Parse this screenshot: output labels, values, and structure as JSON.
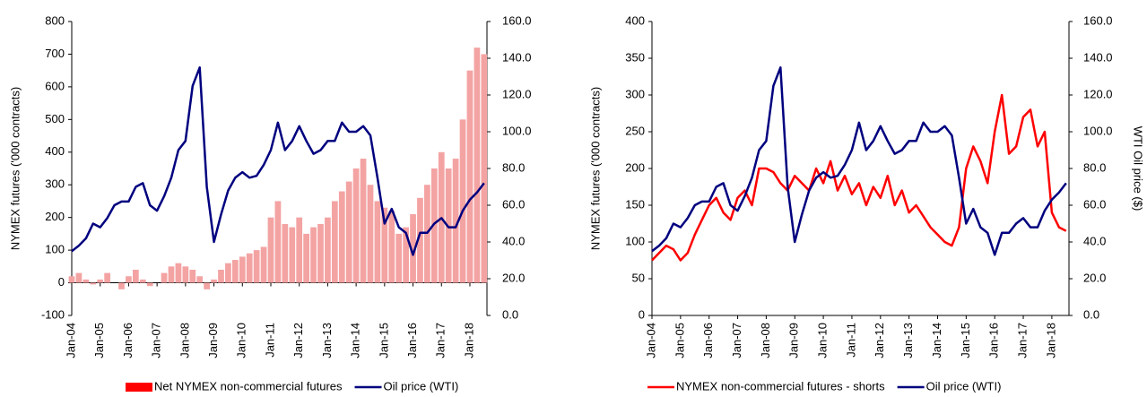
{
  "chart_data": [
    {
      "type": "bar",
      "y_label": "NYMEX futures ('000 contracts)",
      "x": [
        2004,
        2004.25,
        2004.5,
        2004.75,
        2005,
        2005.25,
        2005.5,
        2005.75,
        2006,
        2006.25,
        2006.5,
        2006.75,
        2007,
        2007.25,
        2007.5,
        2007.75,
        2008,
        2008.25,
        2008.5,
        2008.75,
        2009,
        2009.25,
        2009.5,
        2009.75,
        2010,
        2010.25,
        2010.5,
        2010.75,
        2011,
        2011.25,
        2011.5,
        2011.75,
        2012,
        2012.25,
        2012.5,
        2012.75,
        2013,
        2013.25,
        2013.5,
        2013.75,
        2014,
        2014.25,
        2014.5,
        2014.75,
        2015,
        2015.25,
        2015.5,
        2015.75,
        2016,
        2016.25,
        2016.5,
        2016.75,
        2017,
        2017.25,
        2017.5,
        2017.75,
        2018,
        2018.25,
        2018.5
      ],
      "xlim": [
        2004,
        2018.6
      ],
      "xticks": [
        {
          "value": 2004,
          "label": "Jan-04"
        },
        {
          "value": 2005,
          "label": "Jan-05"
        },
        {
          "value": 2006,
          "label": "Jan-06"
        },
        {
          "value": 2007,
          "label": "Jan-07"
        },
        {
          "value": 2008,
          "label": "Jan-08"
        },
        {
          "value": 2009,
          "label": "Jan-09"
        },
        {
          "value": 2010,
          "label": "Jan-10"
        },
        {
          "value": 2011,
          "label": "Jan-11"
        },
        {
          "value": 2012,
          "label": "Jan-12"
        },
        {
          "value": 2013,
          "label": "Jan-13"
        },
        {
          "value": 2014,
          "label": "Jan-14"
        },
        {
          "value": 2015,
          "label": "Jan-15"
        },
        {
          "value": 2016,
          "label": "Jan-16"
        },
        {
          "value": 2017,
          "label": "Jan-17"
        },
        {
          "value": 2018,
          "label": "Jan-18"
        }
      ],
      "ylim": [
        -100,
        800
      ],
      "yticks": [
        -100,
        0,
        100,
        200,
        300,
        400,
        500,
        600,
        700,
        800
      ],
      "y2lim": [
        0,
        160
      ],
      "y2ticks": [
        {
          "value": 0,
          "label": "0.0"
        },
        {
          "value": 20,
          "label": "20.0"
        },
        {
          "value": 40,
          "label": "40.0"
        },
        {
          "value": 60,
          "label": "60.0"
        },
        {
          "value": 80,
          "label": "80.0"
        },
        {
          "value": 100,
          "label": "100.0"
        },
        {
          "value": 120,
          "label": "120.0"
        },
        {
          "value": 140,
          "label": "140.0"
        },
        {
          "value": 160,
          "label": "160.0"
        }
      ],
      "series": [
        {
          "name": "Net NYMEX non-commercial futures",
          "type": "bar",
          "color": "#f4a3a3",
          "legend_color": "#ff0000",
          "values": [
            20,
            30,
            10,
            -5,
            10,
            30,
            0,
            -20,
            20,
            40,
            10,
            -10,
            0,
            30,
            50,
            60,
            50,
            40,
            20,
            -20,
            10,
            40,
            60,
            70,
            80,
            90,
            100,
            110,
            200,
            250,
            180,
            170,
            200,
            150,
            170,
            180,
            200,
            250,
            280,
            310,
            350,
            380,
            300,
            250,
            230,
            220,
            150,
            170,
            210,
            260,
            300,
            350,
            400,
            350,
            380,
            500,
            650,
            720,
            700
          ]
        },
        {
          "name": "Oil price (WTI)",
          "type": "line",
          "color": "#00007f",
          "axis": "y2",
          "values": [
            35,
            38,
            42,
            50,
            48,
            53,
            60,
            62,
            62,
            70,
            72,
            60,
            57,
            65,
            75,
            90,
            95,
            125,
            135,
            70,
            40,
            55,
            68,
            75,
            78,
            75,
            76,
            82,
            90,
            105,
            90,
            95,
            103,
            95,
            88,
            90,
            95,
            95,
            105,
            100,
            100,
            103,
            98,
            75,
            50,
            58,
            48,
            45,
            33,
            45,
            45,
            50,
            53,
            48,
            48,
            57,
            63,
            67,
            72
          ]
        }
      ]
    },
    {
      "type": "line",
      "y_label": "NYMEX futures ('000 contracts)",
      "y2_label": "WTI Oil price ($)",
      "x": [
        2004,
        2004.25,
        2004.5,
        2004.75,
        2005,
        2005.25,
        2005.5,
        2005.75,
        2006,
        2006.25,
        2006.5,
        2006.75,
        2007,
        2007.25,
        2007.5,
        2007.75,
        2008,
        2008.25,
        2008.5,
        2008.75,
        2009,
        2009.25,
        2009.5,
        2009.75,
        2010,
        2010.25,
        2010.5,
        2010.75,
        2011,
        2011.25,
        2011.5,
        2011.75,
        2012,
        2012.25,
        2012.5,
        2012.75,
        2013,
        2013.25,
        2013.5,
        2013.75,
        2014,
        2014.25,
        2014.5,
        2014.75,
        2015,
        2015.25,
        2015.5,
        2015.75,
        2016,
        2016.25,
        2016.5,
        2016.75,
        2017,
        2017.25,
        2017.5,
        2017.75,
        2018,
        2018.25,
        2018.5
      ],
      "xlim": [
        2004,
        2018.6
      ],
      "xticks": [
        {
          "value": 2004,
          "label": "Jan-04"
        },
        {
          "value": 2005,
          "label": "Jan-05"
        },
        {
          "value": 2006,
          "label": "Jan-06"
        },
        {
          "value": 2007,
          "label": "Jan-07"
        },
        {
          "value": 2008,
          "label": "Jan-08"
        },
        {
          "value": 2009,
          "label": "Jan-09"
        },
        {
          "value": 2010,
          "label": "Jan-10"
        },
        {
          "value": 2011,
          "label": "Jan-11"
        },
        {
          "value": 2012,
          "label": "Jan-12"
        },
        {
          "value": 2013,
          "label": "Jan-13"
        },
        {
          "value": 2014,
          "label": "Jan-14"
        },
        {
          "value": 2015,
          "label": "Jan-15"
        },
        {
          "value": 2016,
          "label": "Jan-16"
        },
        {
          "value": 2017,
          "label": "Jan-17"
        },
        {
          "value": 2018,
          "label": "Jan-18"
        }
      ],
      "ylim": [
        0,
        400
      ],
      "yticks": [
        0,
        50,
        100,
        150,
        200,
        250,
        300,
        350,
        400
      ],
      "y2lim": [
        0,
        160
      ],
      "y2ticks": [
        {
          "value": 0,
          "label": "0.0"
        },
        {
          "value": 20,
          "label": "20.0"
        },
        {
          "value": 40,
          "label": "40.0"
        },
        {
          "value": 60,
          "label": "60.0"
        },
        {
          "value": 80,
          "label": "80.0"
        },
        {
          "value": 100,
          "label": "100.0"
        },
        {
          "value": 120,
          "label": "120.0"
        },
        {
          "value": 140,
          "label": "140.0"
        },
        {
          "value": 160,
          "label": "160.0"
        }
      ],
      "series": [
        {
          "name": "NYMEX non-commercial futures - shorts",
          "type": "line",
          "color": "#ff0000",
          "values": [
            75,
            85,
            95,
            90,
            75,
            85,
            110,
            130,
            150,
            160,
            140,
            130,
            160,
            170,
            150,
            200,
            200,
            195,
            180,
            170,
            190,
            180,
            170,
            200,
            180,
            210,
            170,
            190,
            165,
            180,
            150,
            175,
            160,
            190,
            150,
            170,
            140,
            150,
            135,
            120,
            110,
            100,
            95,
            120,
            200,
            230,
            210,
            180,
            250,
            300,
            220,
            230,
            270,
            280,
            230,
            250,
            140,
            120,
            115
          ]
        },
        {
          "name": "Oil price (WTI)",
          "type": "line",
          "color": "#00007f",
          "axis": "y2",
          "values": [
            35,
            38,
            42,
            50,
            48,
            53,
            60,
            62,
            62,
            70,
            72,
            60,
            57,
            65,
            75,
            90,
            95,
            125,
            135,
            70,
            40,
            55,
            68,
            75,
            78,
            75,
            76,
            82,
            90,
            105,
            90,
            95,
            103,
            95,
            88,
            90,
            95,
            95,
            105,
            100,
            100,
            103,
            98,
            75,
            50,
            58,
            48,
            45,
            33,
            45,
            45,
            50,
            53,
            48,
            48,
            57,
            63,
            67,
            72
          ]
        }
      ]
    }
  ]
}
